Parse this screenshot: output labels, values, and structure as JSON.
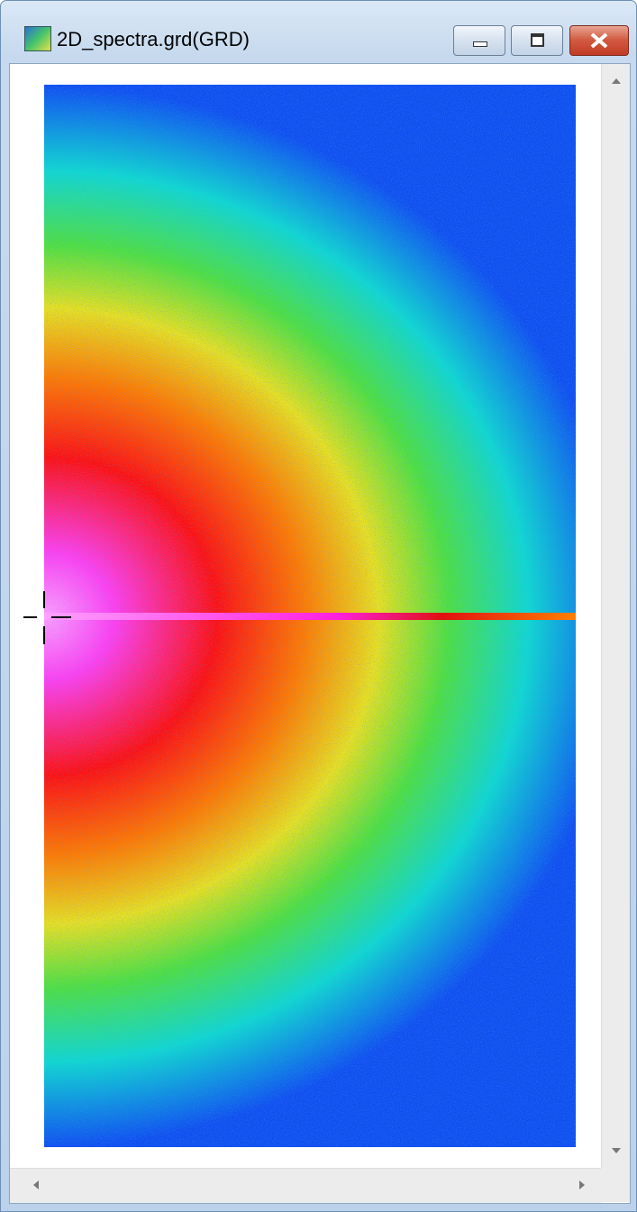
{
  "window": {
    "title": "2D_spectra.grd(GRD)"
  }
}
